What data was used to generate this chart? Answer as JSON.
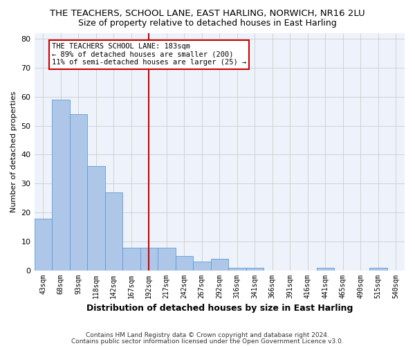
{
  "title": "THE TEACHERS, SCHOOL LANE, EAST HARLING, NORWICH, NR16 2LU",
  "subtitle": "Size of property relative to detached houses in East Harling",
  "xlabel": "Distribution of detached houses by size in East Harling",
  "ylabel": "Number of detached properties",
  "categories": [
    "43sqm",
    "68sqm",
    "93sqm",
    "118sqm",
    "142sqm",
    "167sqm",
    "192sqm",
    "217sqm",
    "242sqm",
    "267sqm",
    "292sqm",
    "316sqm",
    "341sqm",
    "366sqm",
    "391sqm",
    "416sqm",
    "441sqm",
    "465sqm",
    "490sqm",
    "515sqm",
    "540sqm"
  ],
  "values": [
    18,
    59,
    54,
    36,
    27,
    8,
    8,
    8,
    5,
    3,
    4,
    1,
    1,
    0,
    0,
    0,
    1,
    0,
    0,
    1,
    0
  ],
  "bar_color": "#aec6e8",
  "bar_edge_color": "#5a9fd4",
  "vline_x_index": 6,
  "vline_color": "#cc0000",
  "annotation_line1": "THE TEACHERS SCHOOL LANE: 183sqm",
  "annotation_line2": "← 89% of detached houses are smaller (200)",
  "annotation_line3": "11% of semi-detached houses are larger (25) →",
  "annotation_box_color": "#ffffff",
  "annotation_box_edge_color": "#cc0000",
  "ylim": [
    0,
    82
  ],
  "yticks": [
    0,
    10,
    20,
    30,
    40,
    50,
    60,
    70,
    80
  ],
  "footer_line1": "Contains HM Land Registry data © Crown copyright and database right 2024.",
  "footer_line2": "Contains public sector information licensed under the Open Government Licence v3.0.",
  "title_fontsize": 9.5,
  "subtitle_fontsize": 9,
  "annotation_fontsize": 7.5,
  "ylabel_fontsize": 8,
  "xlabel_fontsize": 9,
  "bg_color": "#eef2fb",
  "grid_color": "#cccccc"
}
